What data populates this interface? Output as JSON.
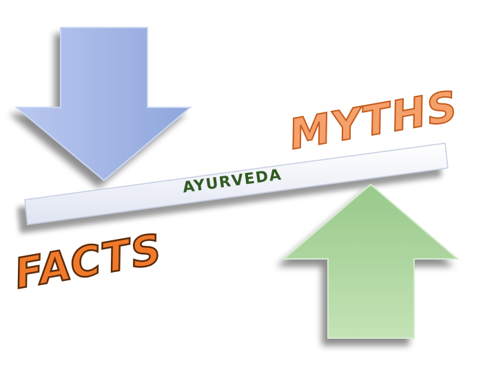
{
  "beam_label": "AYURVEDA",
  "top_word": "MYTHS",
  "bottom_word": "FACTS",
  "colors": {
    "down_arrow": "#9fb3e3",
    "up_arrow": "#a9d49a",
    "beam": "#e8ecf6",
    "beam_text": "#2f5a1f",
    "word_fill_myths": "#f6a06a",
    "word_fill_facts": "#f07a2a",
    "word_outline": "#5a2a0a"
  },
  "icons": {
    "down_arrow": "arrow-down-icon",
    "up_arrow": "arrow-up-icon"
  }
}
